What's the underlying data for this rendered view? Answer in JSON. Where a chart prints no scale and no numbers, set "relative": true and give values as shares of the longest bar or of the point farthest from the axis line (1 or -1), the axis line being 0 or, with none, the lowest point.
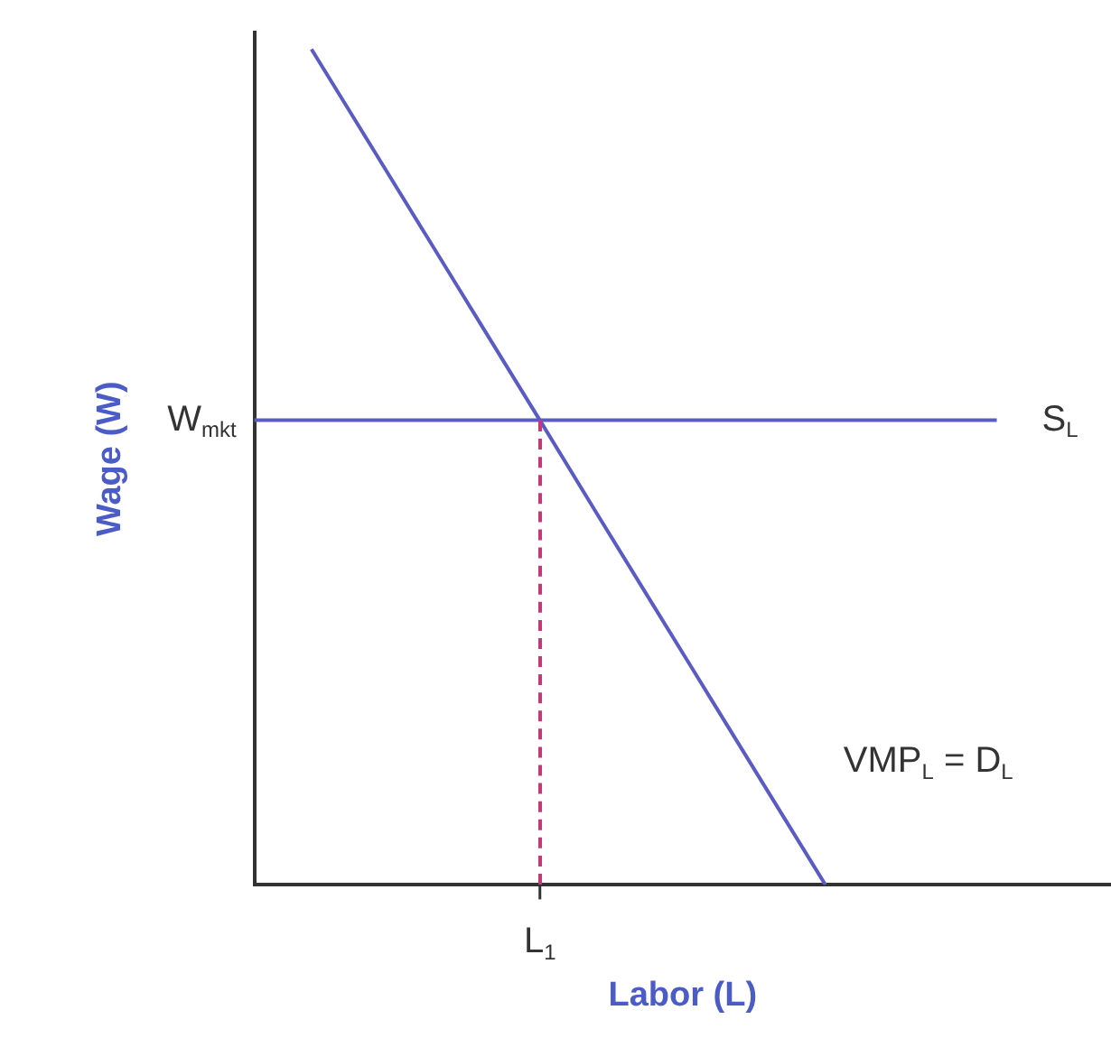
{
  "chart_data": {
    "type": "line",
    "relative": true,
    "xlabel": "Labor (L)",
    "ylabel": "Wage (W)",
    "categories": [
      null,
      null,
      null,
      null,
      null,
      null,
      null,
      null,
      null,
      null,
      null,
      null,
      null,
      null,
      null,
      null
    ],
    "series": [
      {
        "name": "VMP$_{L}$ = D$_{L}$",
        "color": "#5a5cc2",
        "values": [
          null,
          1,
          0.889,
          0.778,
          0.667,
          0.556,
          0.444,
          0.333,
          0.222,
          0.111,
          0,
          null,
          null,
          null,
          null,
          null
        ]
      },
      {
        "name": "S$_{L}$",
        "color": "#5a5cc2",
        "values": [
          0.556,
          0.556,
          0.556,
          0.556,
          0.556,
          0.556,
          0.556,
          0.556,
          0.556,
          0.556,
          0.556,
          0.556,
          0.556,
          0.556,
          null,
          null
        ]
      }
    ],
    "annotations": [
      "W$_{mkt}$",
      "L$_{1}$"
    ],
    "legend": false,
    "marker": "none"
  }
}
